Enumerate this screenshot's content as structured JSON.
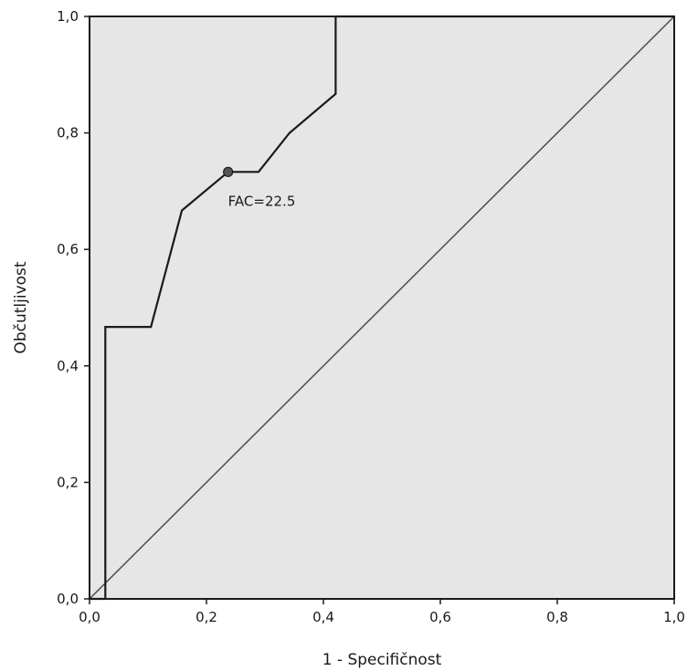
{
  "chart_data": {
    "type": "line",
    "title": "",
    "xlabel": "1 - Specifičnost",
    "ylabel": "Občutljivost",
    "xlim": [
      0,
      1
    ],
    "ylim": [
      0,
      1
    ],
    "grid": false,
    "x_ticks": [
      "0,0",
      "0,2",
      "0,4",
      "0,6",
      "0,8",
      "1,0"
    ],
    "y_ticks": [
      "0,0",
      "0,2",
      "0,4",
      "0,6",
      "0,8",
      "1,0"
    ],
    "series": [
      {
        "type": "step-line",
        "x": [
          0,
          0.027,
          0.027,
          0.105,
          0.158,
          0.237,
          0.289,
          0.342,
          0.421,
          0.421,
          1.0
        ],
        "y": [
          0,
          0,
          0.467,
          0.467,
          0.667,
          0.733,
          0.733,
          0.8,
          0.867,
          1.0,
          1.0
        ]
      },
      {
        "type": "reference-line",
        "x": [
          0,
          1
        ],
        "y": [
          0,
          1
        ]
      }
    ],
    "annotations": [
      {
        "text": "FAC=22.5",
        "x": 0.237,
        "y": 0.733
      }
    ],
    "colors": {
      "plot_background": "#e6e6e6",
      "line": "#1a1a1a",
      "reference_line": "#4d4d4d",
      "marker": "#555555"
    }
  }
}
